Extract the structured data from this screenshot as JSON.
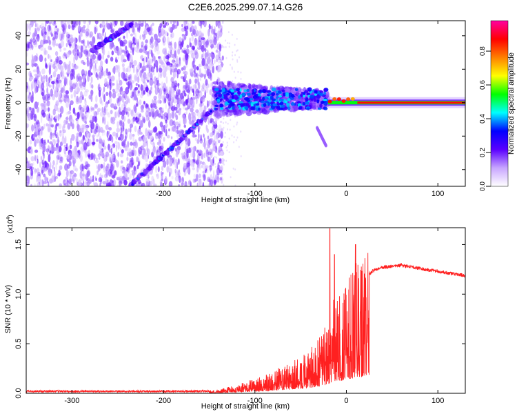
{
  "title": "C2E6.2025.299.07.14.G26",
  "chart_data": [
    {
      "type": "heatmap",
      "xlabel": "Height of straight line (km)",
      "ylabel": "Frequency (Hz)",
      "xlim": [
        -350,
        130
      ],
      "ylim": [
        -50,
        49
      ],
      "x_ticks": [
        -300,
        -200,
        -100,
        0,
        100
      ],
      "y_ticks": [
        -40,
        -20,
        0,
        20,
        40
      ],
      "x_tick_labels": [
        "-300",
        "-200",
        "-100",
        "0",
        "100"
      ],
      "y_tick_labels": [
        "-40",
        "-20",
        "0",
        "20",
        "40"
      ],
      "features": [
        {
          "name": "upper-diagonal-trace",
          "x": [
            -278,
            -235
          ],
          "y": [
            31,
            47
          ]
        },
        {
          "name": "lower-diagonal-trace",
          "x": [
            -235,
            -148
          ],
          "y": [
            -49,
            -5
          ]
        },
        {
          "name": "central-cluster",
          "x": [
            -145,
            -20
          ],
          "y": [
            -10,
            10
          ]
        },
        {
          "name": "central-tail",
          "x": [
            -32,
            -22
          ],
          "y": [
            -15,
            -26
          ]
        },
        {
          "name": "narrow-band",
          "x": [
            -20,
            130
          ],
          "y": [
            0,
            0
          ]
        }
      ],
      "colorbar": {
        "label": "Normalized spectral amplitude",
        "range": [
          0,
          0.98
        ],
        "ticks": [
          "0.0",
          "0.2",
          "0.4",
          "0.6",
          "0.8"
        ],
        "colors": [
          "#ffffff",
          "#c8a6ff",
          "#5a00ff",
          "#0000ff",
          "#00ffff",
          "#00ff00",
          "#ffff00",
          "#ff8000",
          "#ff0000",
          "#ff00a0"
        ]
      }
    },
    {
      "type": "line",
      "xlabel": "Height of straight line (km)",
      "ylabel": "SNR (10 * v/v)",
      "y_exponent": "(x10",
      "y_exponent_power": "4",
      "y_exponent_close": ")",
      "xlim": [
        -350,
        130
      ],
      "ylim": [
        0,
        1.67
      ],
      "x_ticks": [
        -300,
        -200,
        -100,
        0,
        100
      ],
      "y_ticks": [
        0.0,
        0.5,
        1.0,
        1.5
      ],
      "x_tick_labels": [
        "-300",
        "-200",
        "-100",
        "0",
        "100"
      ],
      "y_tick_labels": [
        "0.0",
        "0.5",
        "1.0",
        "1.5"
      ],
      "color": "#ff2020",
      "envelope": {
        "x": [
          -350,
          -300,
          -250,
          -200,
          -160,
          -140,
          -120,
          -100,
          -80,
          -60,
          -40,
          -30,
          -20,
          -15,
          -10,
          -5,
          0,
          10,
          20,
          30,
          40,
          60,
          80,
          100,
          120,
          130
        ],
        "y": [
          0.02,
          0.02,
          0.02,
          0.02,
          0.02,
          0.03,
          0.07,
          0.12,
          0.18,
          0.26,
          0.36,
          0.45,
          0.6,
          0.75,
          0.8,
          0.85,
          0.9,
          1.05,
          1.17,
          1.24,
          1.27,
          1.29,
          1.26,
          1.23,
          1.2,
          1.19
        ]
      },
      "peaks": [
        {
          "x": -18,
          "y": 1.66
        },
        {
          "x": -13,
          "y": 1.4
        },
        {
          "x": 10,
          "y": 1.5
        },
        {
          "x": 60,
          "y": 1.31
        }
      ]
    }
  ]
}
